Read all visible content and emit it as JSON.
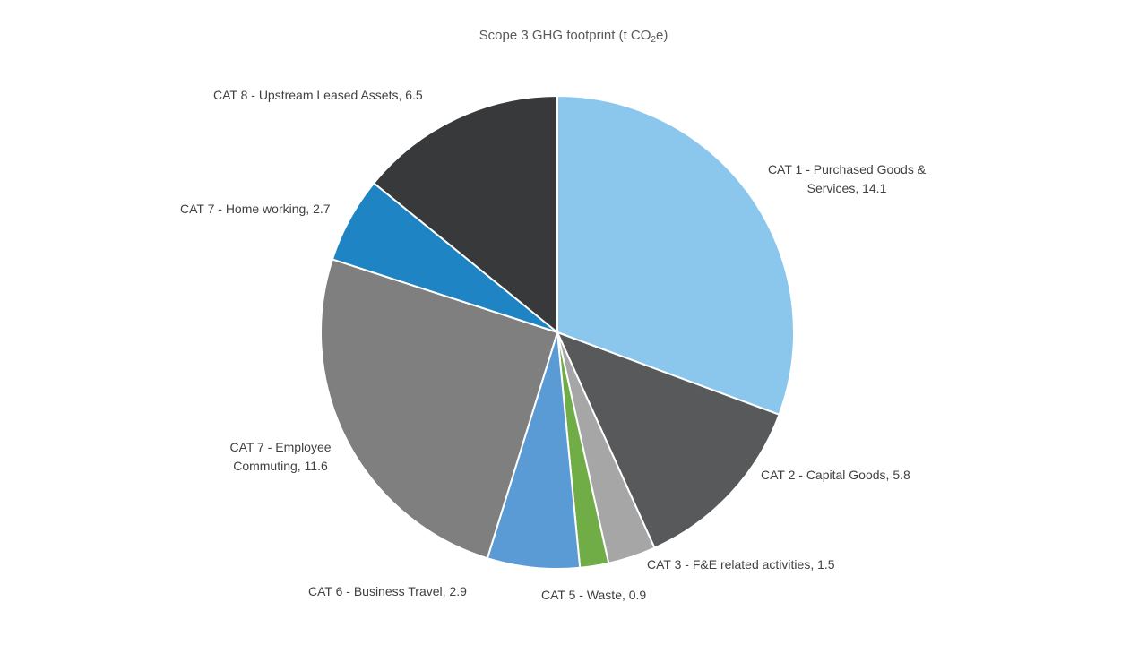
{
  "chart_data": {
    "type": "pie",
    "title": {
      "prefix": "Scope 3 GHG footprint (t CO",
      "subscript": "2",
      "suffix": "e)"
    },
    "legend": "none",
    "slices": [
      {
        "category": "CAT 1 - Purchased Goods & Services",
        "value": 14.1,
        "color": "#8BC7ED",
        "label_lines": [
          "CAT 1 - Purchased Goods &",
          "Services, 14.1"
        ]
      },
      {
        "category": "CAT 2 - Capital Goods",
        "value": 5.8,
        "color": "#58595B",
        "label_lines": [
          "CAT 2 - Capital Goods, 5.8"
        ]
      },
      {
        "category": "CAT 3 - F&E related activities",
        "value": 1.5,
        "color": "#A6A6A6",
        "label_lines": [
          "CAT 3 - F&E related activities, 1.5"
        ]
      },
      {
        "category": "CAT 5 - Waste",
        "value": 0.9,
        "color": "#70AD47",
        "label_lines": [
          "CAT 5 - Waste, 0.9"
        ]
      },
      {
        "category": "CAT 6 - Business Travel",
        "value": 2.9,
        "color": "#5B9BD5",
        "label_lines": [
          "CAT 6 - Business Travel, 2.9"
        ]
      },
      {
        "category": "CAT 7 - Employee Commuting",
        "value": 11.6,
        "color": "#7F7F7F",
        "label_lines": [
          "CAT 7 - Employee",
          "Commuting,  11.6"
        ]
      },
      {
        "category": "CAT 7 - Home working",
        "value": 2.7,
        "color": "#1F84C4",
        "label_lines": [
          "CAT 7 - Home  working,  2.7"
        ]
      },
      {
        "category": "CAT 8 - Upstream Leased Assets",
        "value": 6.5,
        "color": "#38393B",
        "label_lines": [
          "CAT 8 - Upstream  Leased Assets, 6.5"
        ]
      }
    ]
  }
}
